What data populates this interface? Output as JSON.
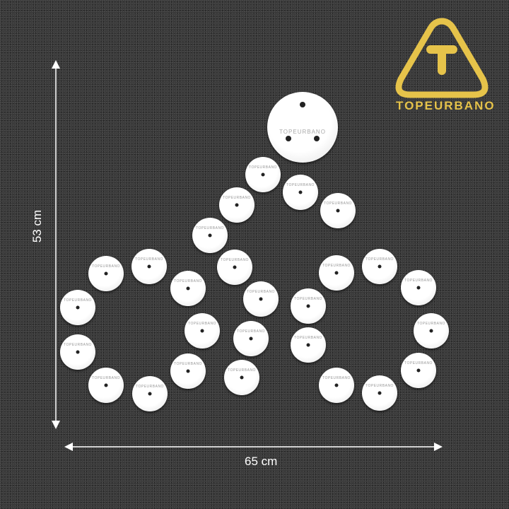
{
  "brand": {
    "name": "TOPEURBANO",
    "logo_color": "#e6c34a",
    "logo_icon": "t-triangle-icon"
  },
  "dimensions": {
    "height_label": "53 cm",
    "width_label": "65 cm"
  },
  "stud_label": "TOPEURBANO"
}
